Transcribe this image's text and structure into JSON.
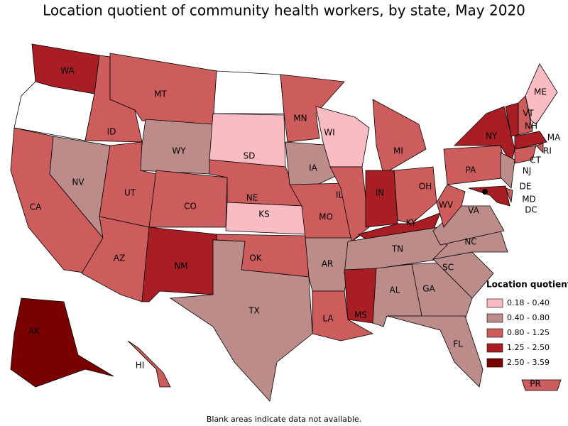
{
  "title": "Location quotient of community health workers, by state, May 2020",
  "footnote": "Blank areas indicate data not available.",
  "legend": {
    "title": "Location quotient",
    "items": [
      {
        "label": "0.18 - 0.40",
        "color": "#f9bcc3"
      },
      {
        "label": "0.40 - 0.80",
        "color": "#bc8c8a"
      },
      {
        "label": "0.80 - 1.25",
        "color": "#cd5c5c"
      },
      {
        "label": "1.25 - 2.50",
        "color": "#a81e24"
      },
      {
        "label": "2.50 - 3.59",
        "color": "#7a0000"
      }
    ]
  },
  "states": [
    {
      "abbr": "WA",
      "class": 3
    },
    {
      "abbr": "CA",
      "class": 2
    },
    {
      "abbr": "NV",
      "class": 1
    },
    {
      "abbr": "ID",
      "class": 2
    },
    {
      "abbr": "MT",
      "class": 2
    },
    {
      "abbr": "WY",
      "class": 1
    },
    {
      "abbr": "UT",
      "class": 2
    },
    {
      "abbr": "AZ",
      "class": 2
    },
    {
      "abbr": "CO",
      "class": 2
    },
    {
      "abbr": "NM",
      "class": 3
    },
    {
      "abbr": "SD",
      "class": 0
    },
    {
      "abbr": "NE",
      "class": 2
    },
    {
      "abbr": "KS",
      "class": 0
    },
    {
      "abbr": "OK",
      "class": 2
    },
    {
      "abbr": "TX",
      "class": 1
    },
    {
      "abbr": "MN",
      "class": 2
    },
    {
      "abbr": "IA",
      "class": 1
    },
    {
      "abbr": "MO",
      "class": 2
    },
    {
      "abbr": "AR",
      "class": 1
    },
    {
      "abbr": "LA",
      "class": 2
    },
    {
      "abbr": "WI",
      "class": 0
    },
    {
      "abbr": "IL",
      "class": 2
    },
    {
      "abbr": "MI",
      "class": 2
    },
    {
      "abbr": "IN",
      "class": 3
    },
    {
      "abbr": "OH",
      "class": 2
    },
    {
      "abbr": "KY",
      "class": 3
    },
    {
      "abbr": "TN",
      "class": 1
    },
    {
      "abbr": "MS",
      "class": 3
    },
    {
      "abbr": "AL",
      "class": 1
    },
    {
      "abbr": "GA",
      "class": 1
    },
    {
      "abbr": "FL",
      "class": 1
    },
    {
      "abbr": "SC",
      "class": 1
    },
    {
      "abbr": "NC",
      "class": 1
    },
    {
      "abbr": "VA",
      "class": 1
    },
    {
      "abbr": "WV",
      "class": 2
    },
    {
      "abbr": "PA",
      "class": 2
    },
    {
      "abbr": "NY",
      "class": 3
    },
    {
      "abbr": "NJ",
      "class": 1
    },
    {
      "abbr": "DE",
      "class": 2
    },
    {
      "abbr": "MD",
      "class": 3
    },
    {
      "abbr": "DC",
      "class": 4
    },
    {
      "abbr": "VT",
      "class": 3
    },
    {
      "abbr": "NH",
      "class": 2
    },
    {
      "abbr": "ME",
      "class": 0
    },
    {
      "abbr": "MA",
      "class": 3
    },
    {
      "abbr": "RI",
      "class": 2
    },
    {
      "abbr": "CT",
      "class": 2
    },
    {
      "abbr": "AK",
      "class": 4
    },
    {
      "abbr": "HI",
      "class": 2
    },
    {
      "abbr": "PR",
      "class": 2
    }
  ]
}
